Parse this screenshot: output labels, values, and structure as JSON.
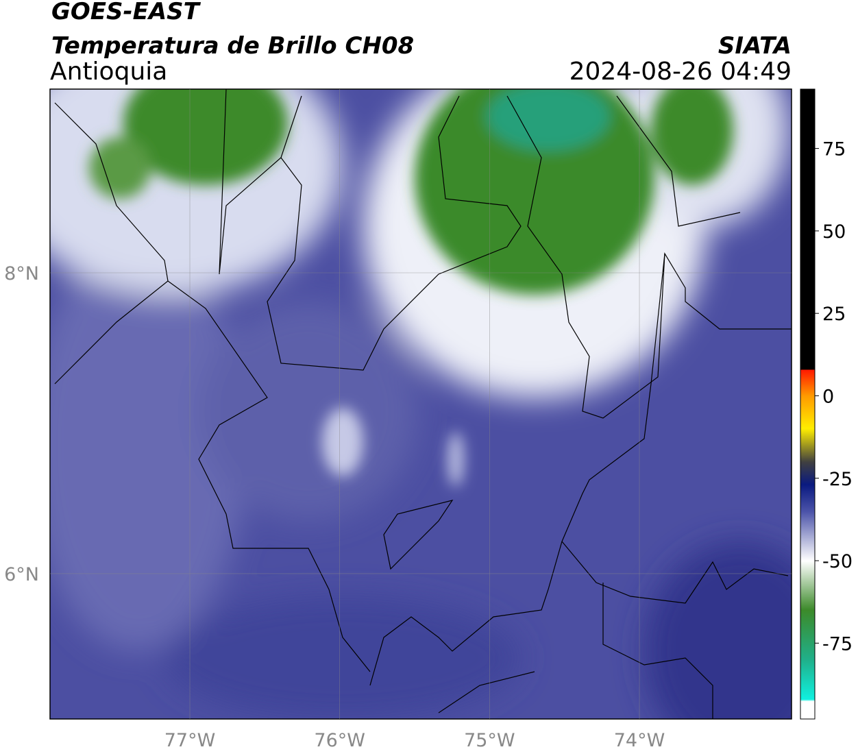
{
  "map": {
    "title": "GOES-EAST",
    "subtitle": "Temperatura de Brillo CH08",
    "region": "Antioquia",
    "source": "SIATA",
    "datetime": "2024-08-26 04:49",
    "lon_range": [
      -77.933,
      -72.985
    ],
    "lat_range": [
      5.034,
      9.221
    ],
    "lon_ticks": [
      {
        "value": -77,
        "label": "77°W"
      },
      {
        "value": -76,
        "label": "76°W"
      },
      {
        "value": -75,
        "label": "75°W"
      },
      {
        "value": -74,
        "label": "74°W"
      }
    ],
    "lat_ticks": [
      {
        "value": 8,
        "label": "8°N"
      },
      {
        "value": 6,
        "label": "6°N"
      }
    ],
    "colorbar": {
      "clim": [
        -98,
        93
      ],
      "ticks": [
        75,
        50,
        25,
        0,
        -25,
        -50,
        -75
      ]
    }
  }
}
